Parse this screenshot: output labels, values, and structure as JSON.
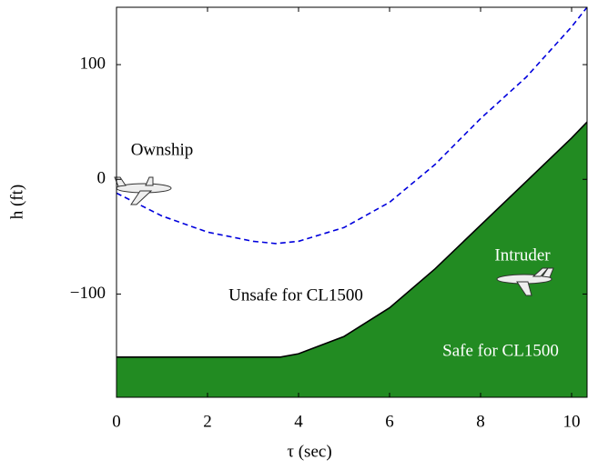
{
  "chart_data": {
    "type": "line",
    "xlabel": "τ (sec)",
    "ylabel": "h (ft)",
    "xlim": [
      0,
      10.34
    ],
    "ylim": [
      -190,
      150
    ],
    "xticks": [
      0,
      2,
      4,
      6,
      8,
      10
    ],
    "yticks": [
      {
        "value": -100,
        "label": "−100"
      },
      0,
      100
    ],
    "series": [
      {
        "color": "#0000dd",
        "dash": true,
        "x": [
          0,
          1,
          2,
          3,
          3.5,
          4,
          5,
          6,
          7,
          8,
          9,
          10,
          10.34
        ],
        "values": [
          -12,
          -32,
          -46,
          -54,
          -56,
          -54,
          -42,
          -20,
          13,
          53,
          89,
          133,
          150
        ]
      },
      {
        "color": "#000000",
        "fill": "#228b22",
        "x": [
          0,
          3.6,
          4,
          5,
          6,
          7,
          8,
          9,
          10,
          10.34
        ],
        "values": [
          -155,
          -155,
          -152,
          -137,
          -112,
          -78,
          -40,
          -2,
          36,
          50
        ]
      }
    ],
    "annotations": [
      "Ownship",
      "Intruder",
      "Unsafe for CL1500",
      "Safe for CL1500"
    ]
  }
}
